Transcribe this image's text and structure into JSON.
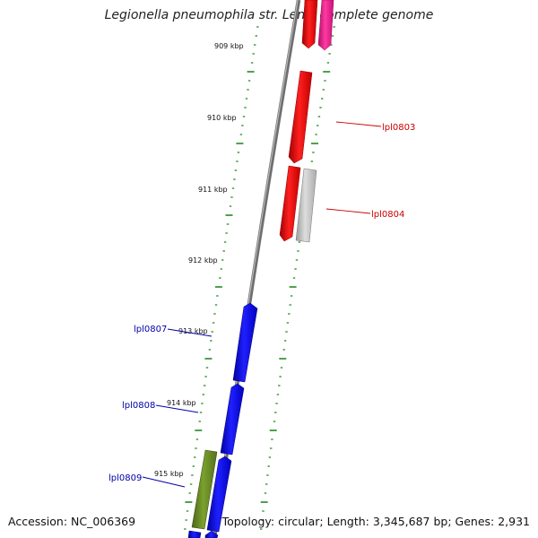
{
  "title": "Legionella pneumophila str. Lens, complete genome",
  "footer": {
    "accession": "Accession: NC_006369",
    "summary": "Topology: circular; Length: 3,345,687 bp; Genes: 2,931"
  },
  "scale_labels": [
    "909 kbp",
    "910 kbp",
    "911 kbp",
    "912 kbp",
    "913 kbp",
    "914 kbp",
    "915 kbp"
  ],
  "gene_labels": [
    {
      "text": "lpl0803",
      "color": "#cc0000"
    },
    {
      "text": "lpl0804",
      "color": "#cc0000"
    },
    {
      "text": "lpl0807",
      "color": "#0000aa"
    },
    {
      "text": "lpl0808",
      "color": "#0000aa"
    },
    {
      "text": "lpl0809",
      "color": "#0000aa"
    }
  ],
  "colors": {
    "forward_red": "#ff0000",
    "forward_magenta": "#ff1493",
    "forward_grey": "#bbbbbb",
    "reverse_blue": "#0000ff",
    "reverse_olive": "#6b8e23",
    "tick_green": "#228b22",
    "backbone": "#808080"
  }
}
